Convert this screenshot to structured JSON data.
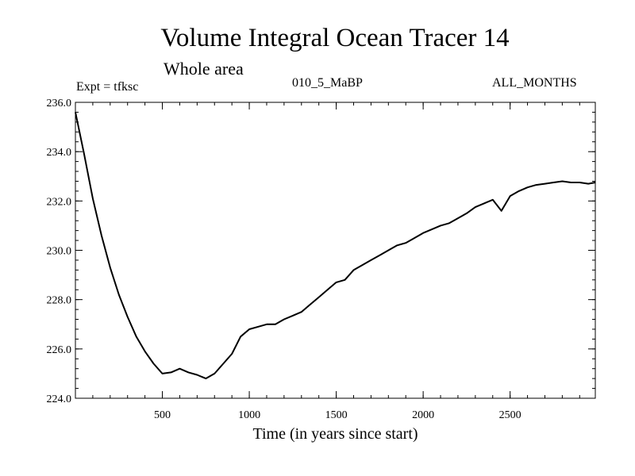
{
  "chart_data": {
    "type": "line",
    "title": "Volume Integral Ocean Tracer 14",
    "subtitle": "Whole area",
    "annotations": {
      "experiment": "Expt = tfksc",
      "period": "010_5_MaBP",
      "months": "ALL_MONTHS"
    },
    "xlabel": "Time (in years since start)",
    "ylabel": "",
    "xlim": [
      0,
      2990
    ],
    "ylim": [
      224.0,
      236.0
    ],
    "x_ticks": [
      500,
      1000,
      1500,
      2000,
      2500
    ],
    "x_minor_step": 100,
    "y_ticks": [
      "224.0",
      "226.0",
      "228.0",
      "230.0",
      "232.0",
      "234.0",
      "236.0"
    ],
    "y_minor_step": 0.4,
    "grid": false,
    "series": [
      {
        "name": "Tracer 14",
        "color": "#000000",
        "points": [
          [
            0,
            235.6
          ],
          [
            50,
            233.9
          ],
          [
            100,
            232.1
          ],
          [
            150,
            230.6
          ],
          [
            200,
            229.3
          ],
          [
            250,
            228.2
          ],
          [
            300,
            227.3
          ],
          [
            350,
            226.5
          ],
          [
            400,
            225.9
          ],
          [
            450,
            225.4
          ],
          [
            500,
            225.0
          ],
          [
            550,
            225.05
          ],
          [
            600,
            225.2
          ],
          [
            650,
            225.05
          ],
          [
            700,
            224.95
          ],
          [
            750,
            224.8
          ],
          [
            800,
            225.0
          ],
          [
            850,
            225.4
          ],
          [
            900,
            225.8
          ],
          [
            950,
            226.5
          ],
          [
            1000,
            226.8
          ],
          [
            1050,
            226.9
          ],
          [
            1100,
            227.0
          ],
          [
            1150,
            227.0
          ],
          [
            1200,
            227.2
          ],
          [
            1250,
            227.35
          ],
          [
            1300,
            227.5
          ],
          [
            1350,
            227.8
          ],
          [
            1400,
            228.1
          ],
          [
            1450,
            228.4
          ],
          [
            1500,
            228.7
          ],
          [
            1550,
            228.8
          ],
          [
            1600,
            229.2
          ],
          [
            1650,
            229.4
          ],
          [
            1700,
            229.6
          ],
          [
            1750,
            229.8
          ],
          [
            1800,
            230.0
          ],
          [
            1850,
            230.2
          ],
          [
            1900,
            230.3
          ],
          [
            1950,
            230.5
          ],
          [
            2000,
            230.7
          ],
          [
            2050,
            230.85
          ],
          [
            2100,
            231.0
          ],
          [
            2150,
            231.1
          ],
          [
            2200,
            231.3
          ],
          [
            2250,
            231.5
          ],
          [
            2300,
            231.75
          ],
          [
            2350,
            231.9
          ],
          [
            2400,
            232.05
          ],
          [
            2450,
            231.6
          ],
          [
            2500,
            232.2
          ],
          [
            2550,
            232.4
          ],
          [
            2600,
            232.55
          ],
          [
            2650,
            232.65
          ],
          [
            2700,
            232.7
          ],
          [
            2750,
            232.75
          ],
          [
            2800,
            232.8
          ],
          [
            2850,
            232.75
          ],
          [
            2900,
            232.75
          ],
          [
            2950,
            232.7
          ],
          [
            2990,
            232.75
          ]
        ]
      }
    ]
  }
}
